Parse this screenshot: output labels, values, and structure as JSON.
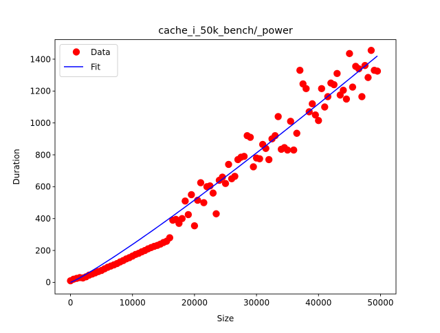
{
  "chart_data": {
    "type": "scatter",
    "title": "cache_i_50k_bench/_power",
    "xlabel": "Size",
    "ylabel": "Duration",
    "xlim": [
      -2500,
      52500
    ],
    "ylim": [
      -72.5,
      1522.5
    ],
    "xticks": [
      0,
      10000,
      20000,
      30000,
      40000,
      50000
    ],
    "xtick_labels": [
      "0",
      "10000",
      "20000",
      "30000",
      "40000",
      "50000"
    ],
    "yticks": [
      0,
      200,
      400,
      600,
      800,
      1000,
      1200,
      1400
    ],
    "ytick_labels": [
      "0",
      "200",
      "400",
      "600",
      "800",
      "1000",
      "1200",
      "1400"
    ],
    "grid": false,
    "legend_position": "top-left",
    "colors": {
      "data": "#ff0000",
      "fit": "#0000ff",
      "axes": "#000000"
    },
    "series": [
      {
        "name": "Data",
        "kind": "scatter",
        "points": [
          [
            0,
            10
          ],
          [
            500,
            20
          ],
          [
            1000,
            25
          ],
          [
            1500,
            30
          ],
          [
            2000,
            28
          ],
          [
            2500,
            35
          ],
          [
            3000,
            45
          ],
          [
            3500,
            52
          ],
          [
            4000,
            60
          ],
          [
            4500,
            68
          ],
          [
            5000,
            75
          ],
          [
            5500,
            85
          ],
          [
            6000,
            95
          ],
          [
            6500,
            102
          ],
          [
            7000,
            110
          ],
          [
            7500,
            118
          ],
          [
            8000,
            128
          ],
          [
            8500,
            137
          ],
          [
            9000,
            147
          ],
          [
            9500,
            155
          ],
          [
            10000,
            165
          ],
          [
            10500,
            175
          ],
          [
            11000,
            182
          ],
          [
            11500,
            192
          ],
          [
            12000,
            200
          ],
          [
            12500,
            210
          ],
          [
            13000,
            218
          ],
          [
            13500,
            226
          ],
          [
            14000,
            232
          ],
          [
            14500,
            240
          ],
          [
            15000,
            250
          ],
          [
            15500,
            258
          ],
          [
            16000,
            280
          ],
          [
            16500,
            390
          ],
          [
            17000,
            395
          ],
          [
            17500,
            370
          ],
          [
            18000,
            400
          ],
          [
            18500,
            510
          ],
          [
            19000,
            425
          ],
          [
            19500,
            550
          ],
          [
            20000,
            355
          ],
          [
            20500,
            515
          ],
          [
            21000,
            625
          ],
          [
            21500,
            500
          ],
          [
            22000,
            600
          ],
          [
            22500,
            605
          ],
          [
            23000,
            560
          ],
          [
            23500,
            430
          ],
          [
            24000,
            640
          ],
          [
            24500,
            660
          ],
          [
            25000,
            620
          ],
          [
            25500,
            740
          ],
          [
            26000,
            650
          ],
          [
            26500,
            665
          ],
          [
            27000,
            770
          ],
          [
            27500,
            785
          ],
          [
            28000,
            790
          ],
          [
            28500,
            920
          ],
          [
            29000,
            910
          ],
          [
            29500,
            725
          ],
          [
            30000,
            780
          ],
          [
            30500,
            775
          ],
          [
            31000,
            865
          ],
          [
            31500,
            840
          ],
          [
            32000,
            770
          ],
          [
            32500,
            900
          ],
          [
            33000,
            920
          ],
          [
            33500,
            1040
          ],
          [
            34000,
            835
          ],
          [
            34500,
            845
          ],
          [
            35000,
            830
          ],
          [
            35500,
            1010
          ],
          [
            36000,
            830
          ],
          [
            36500,
            935
          ],
          [
            37000,
            1330
          ],
          [
            37500,
            1245
          ],
          [
            38000,
            1215
          ],
          [
            38500,
            1070
          ],
          [
            39000,
            1120
          ],
          [
            39500,
            1050
          ],
          [
            40000,
            1015
          ],
          [
            40500,
            1215
          ],
          [
            41000,
            1100
          ],
          [
            41500,
            1165
          ],
          [
            42000,
            1250
          ],
          [
            42500,
            1240
          ],
          [
            43000,
            1310
          ],
          [
            43500,
            1175
          ],
          [
            44000,
            1205
          ],
          [
            44500,
            1150
          ],
          [
            45000,
            1435
          ],
          [
            45500,
            1225
          ],
          [
            46000,
            1355
          ],
          [
            46500,
            1340
          ],
          [
            47000,
            1165
          ],
          [
            47500,
            1360
          ],
          [
            48000,
            1285
          ],
          [
            48500,
            1455
          ],
          [
            49000,
            1330
          ],
          [
            49500,
            1325
          ]
        ]
      },
      {
        "name": "Fit",
        "kind": "line",
        "function": "power",
        "a": 0.0081,
        "b": 1.117,
        "x_range": [
          0,
          49500
        ]
      }
    ]
  }
}
